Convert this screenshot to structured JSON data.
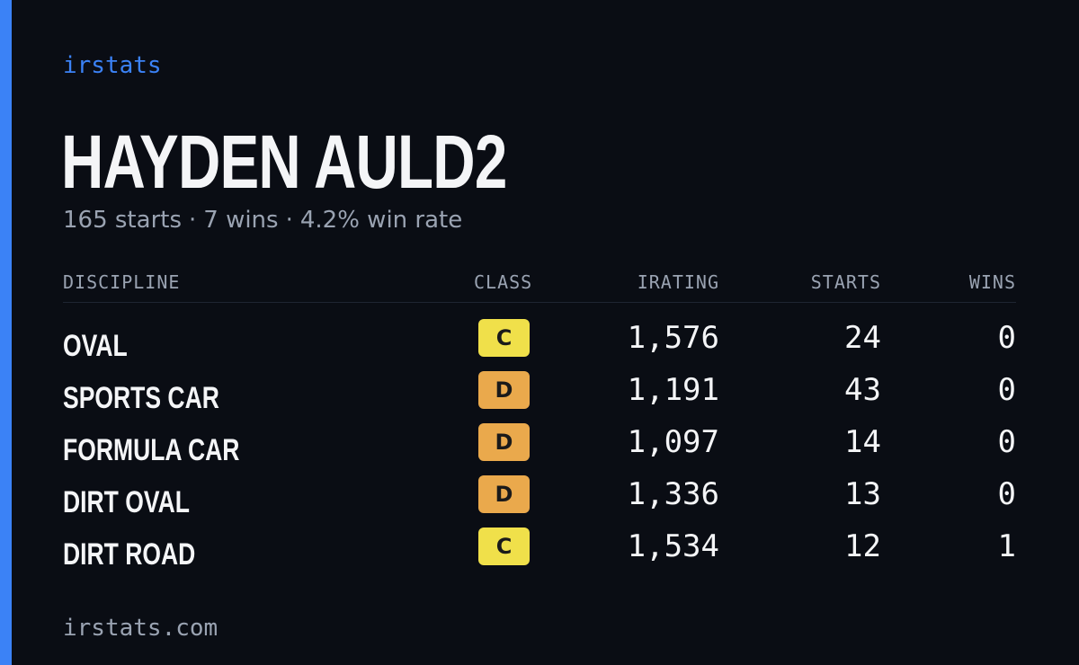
{
  "brand": "irstats",
  "player": {
    "name": "HAYDEN AULD2"
  },
  "summary": {
    "starts": "165 starts",
    "wins": "7 wins",
    "win_rate": "4.2% win rate",
    "separator": "·"
  },
  "table": {
    "headers": {
      "discipline": "DISCIPLINE",
      "class": "CLASS",
      "irating": "IRATING",
      "starts": "STARTS",
      "wins": "WINS"
    },
    "rows": [
      {
        "discipline": "OVAL",
        "class": "C",
        "class_color": "#f0e04a",
        "irating": "1,576",
        "starts": "24",
        "wins": "0"
      },
      {
        "discipline": "SPORTS CAR",
        "class": "D",
        "class_color": "#eaa94c",
        "irating": "1,191",
        "starts": "43",
        "wins": "0"
      },
      {
        "discipline": "FORMULA CAR",
        "class": "D",
        "class_color": "#eaa94c",
        "irating": "1,097",
        "starts": "14",
        "wins": "0"
      },
      {
        "discipline": "DIRT OVAL",
        "class": "D",
        "class_color": "#eaa94c",
        "irating": "1,336",
        "starts": "13",
        "wins": "0"
      },
      {
        "discipline": "DIRT ROAD",
        "class": "C",
        "class_color": "#f0e04a",
        "irating": "1,534",
        "starts": "12",
        "wins": "1"
      }
    ]
  },
  "footer": {
    "site": "irstats.com"
  },
  "colors": {
    "accent": "#3b82f6",
    "background": "#0a0d14",
    "muted_text": "#9aa3b2",
    "class_c": "#f0e04a",
    "class_d": "#eaa94c"
  }
}
